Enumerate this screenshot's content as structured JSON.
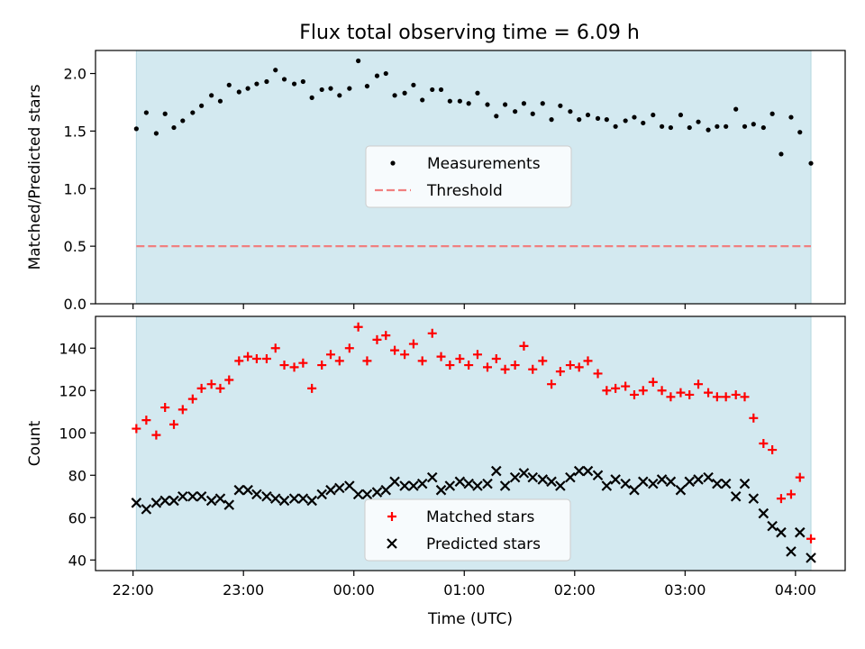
{
  "title": "Flux total observing time = 6.09 h",
  "colors": {
    "shade": "#d3e9f0",
    "shade_edge": "#b4d5df",
    "threshold": "#f08080",
    "matched": "#ff0000",
    "predicted": "#000000",
    "measurement": "#000000"
  },
  "chart_data": [
    {
      "type": "scatter",
      "panel": "top",
      "ylabel": "Matched/Predicted stars",
      "xlabel": "",
      "xlim_hours": [
        21.66,
        28.45
      ],
      "ylim": [
        0,
        2.2
      ],
      "yticks": [
        0.0,
        0.5,
        1.0,
        1.5,
        2.0
      ],
      "ytick_labels": [
        "0.0",
        "0.5",
        "1.0",
        "1.5",
        "2.0"
      ],
      "observing_window_hours": [
        22.03,
        28.14
      ],
      "legend": {
        "position": "center",
        "entries": [
          "Measurements",
          "Threshold"
        ]
      },
      "threshold": {
        "name": "Threshold",
        "value": 0.5,
        "style": "dashed"
      },
      "series": [
        {
          "name": "Measurements",
          "points": [
            [
              22.03,
              1.52
            ],
            [
              22.12,
              1.66
            ],
            [
              22.21,
              1.48
            ],
            [
              22.29,
              1.65
            ],
            [
              22.37,
              1.53
            ],
            [
              22.45,
              1.59
            ],
            [
              22.54,
              1.66
            ],
            [
              22.62,
              1.72
            ],
            [
              22.71,
              1.81
            ],
            [
              22.79,
              1.76
            ],
            [
              22.87,
              1.9
            ],
            [
              22.96,
              1.84
            ],
            [
              23.04,
              1.87
            ],
            [
              23.12,
              1.91
            ],
            [
              23.21,
              1.93
            ],
            [
              23.29,
              2.03
            ],
            [
              23.37,
              1.95
            ],
            [
              23.46,
              1.91
            ],
            [
              23.54,
              1.93
            ],
            [
              23.62,
              1.79
            ],
            [
              23.71,
              1.86
            ],
            [
              23.79,
              1.87
            ],
            [
              23.87,
              1.81
            ],
            [
              23.96,
              1.87
            ],
            [
              24.04,
              2.11
            ],
            [
              24.12,
              1.89
            ],
            [
              24.21,
              1.98
            ],
            [
              24.29,
              2.0
            ],
            [
              24.37,
              1.81
            ],
            [
              24.46,
              1.83
            ],
            [
              24.54,
              1.9
            ],
            [
              24.62,
              1.77
            ],
            [
              24.71,
              1.86
            ],
            [
              24.79,
              1.86
            ],
            [
              24.87,
              1.76
            ],
            [
              24.96,
              1.76
            ],
            [
              25.04,
              1.74
            ],
            [
              25.12,
              1.83
            ],
            [
              25.21,
              1.73
            ],
            [
              25.29,
              1.63
            ],
            [
              25.37,
              1.73
            ],
            [
              25.46,
              1.67
            ],
            [
              25.54,
              1.74
            ],
            [
              25.62,
              1.65
            ],
            [
              25.71,
              1.74
            ],
            [
              25.79,
              1.6
            ],
            [
              25.87,
              1.72
            ],
            [
              25.96,
              1.67
            ],
            [
              26.04,
              1.6
            ],
            [
              26.12,
              1.64
            ],
            [
              26.21,
              1.61
            ],
            [
              26.29,
              1.6
            ],
            [
              26.37,
              1.54
            ],
            [
              26.46,
              1.59
            ],
            [
              26.54,
              1.62
            ],
            [
              26.62,
              1.57
            ],
            [
              26.71,
              1.64
            ],
            [
              26.79,
              1.54
            ],
            [
              26.87,
              1.53
            ],
            [
              26.96,
              1.64
            ],
            [
              27.04,
              1.53
            ],
            [
              27.12,
              1.58
            ],
            [
              27.21,
              1.51
            ],
            [
              27.29,
              1.54
            ],
            [
              27.37,
              1.54
            ],
            [
              27.46,
              1.69
            ],
            [
              27.54,
              1.54
            ],
            [
              27.62,
              1.56
            ],
            [
              27.71,
              1.53
            ],
            [
              27.79,
              1.65
            ],
            [
              27.87,
              1.3
            ],
            [
              27.96,
              1.62
            ],
            [
              28.04,
              1.49
            ],
            [
              28.14,
              1.22
            ]
          ]
        }
      ]
    },
    {
      "type": "scatter",
      "panel": "bottom",
      "ylabel": "Count",
      "xlabel": "Time (UTC)",
      "xlim_hours": [
        21.66,
        28.45
      ],
      "ylim": [
        35,
        155
      ],
      "yticks": [
        40,
        60,
        80,
        100,
        120,
        140
      ],
      "ytick_labels": [
        "40",
        "60",
        "80",
        "100",
        "120",
        "140"
      ],
      "xticks_hours": [
        22,
        23,
        24,
        25,
        26,
        27,
        28
      ],
      "xtick_labels": [
        "22:00",
        "23:00",
        "00:00",
        "01:00",
        "02:00",
        "03:00",
        "04:00"
      ],
      "observing_window_hours": [
        22.03,
        28.14
      ],
      "legend": {
        "position": "lower center",
        "entries": [
          "Matched stars",
          "Predicted stars"
        ]
      },
      "series": [
        {
          "name": "Matched stars",
          "marker": "plus",
          "points": [
            [
              22.03,
              102
            ],
            [
              22.12,
              106
            ],
            [
              22.21,
              99
            ],
            [
              22.29,
              112
            ],
            [
              22.37,
              104
            ],
            [
              22.45,
              111
            ],
            [
              22.54,
              116
            ],
            [
              22.62,
              121
            ],
            [
              22.71,
              123
            ],
            [
              22.79,
              121
            ],
            [
              22.87,
              125
            ],
            [
              22.96,
              134
            ],
            [
              23.04,
              136
            ],
            [
              23.12,
              135
            ],
            [
              23.21,
              135
            ],
            [
              23.29,
              140
            ],
            [
              23.37,
              132
            ],
            [
              23.46,
              131
            ],
            [
              23.54,
              133
            ],
            [
              23.62,
              121
            ],
            [
              23.71,
              132
            ],
            [
              23.79,
              137
            ],
            [
              23.87,
              134
            ],
            [
              23.96,
              140
            ],
            [
              24.04,
              150
            ],
            [
              24.12,
              134
            ],
            [
              24.21,
              144
            ],
            [
              24.29,
              146
            ],
            [
              24.37,
              139
            ],
            [
              24.46,
              137
            ],
            [
              24.54,
              142
            ],
            [
              24.62,
              134
            ],
            [
              24.71,
              147
            ],
            [
              24.79,
              136
            ],
            [
              24.87,
              132
            ],
            [
              24.96,
              135
            ],
            [
              25.04,
              132
            ],
            [
              25.12,
              137
            ],
            [
              25.21,
              131
            ],
            [
              25.29,
              135
            ],
            [
              25.37,
              130
            ],
            [
              25.46,
              132
            ],
            [
              25.54,
              141
            ],
            [
              25.62,
              130
            ],
            [
              25.71,
              134
            ],
            [
              25.79,
              123
            ],
            [
              25.87,
              129
            ],
            [
              25.96,
              132
            ],
            [
              26.04,
              131
            ],
            [
              26.12,
              134
            ],
            [
              26.21,
              128
            ],
            [
              26.29,
              120
            ],
            [
              26.37,
              121
            ],
            [
              26.46,
              122
            ],
            [
              26.54,
              118
            ],
            [
              26.62,
              120
            ],
            [
              26.71,
              124
            ],
            [
              26.79,
              120
            ],
            [
              26.87,
              117
            ],
            [
              26.96,
              119
            ],
            [
              27.04,
              118
            ],
            [
              27.12,
              123
            ],
            [
              27.21,
              119
            ],
            [
              27.29,
              117
            ],
            [
              27.37,
              117
            ],
            [
              27.46,
              118
            ],
            [
              27.54,
              117
            ],
            [
              27.62,
              107
            ],
            [
              27.71,
              95
            ],
            [
              27.79,
              92
            ],
            [
              27.87,
              69
            ],
            [
              27.96,
              71
            ],
            [
              28.04,
              79
            ],
            [
              28.14,
              50
            ]
          ]
        },
        {
          "name": "Predicted stars",
          "marker": "x",
          "points": [
            [
              22.03,
              67
            ],
            [
              22.12,
              64
            ],
            [
              22.21,
              67
            ],
            [
              22.29,
              68
            ],
            [
              22.37,
              68
            ],
            [
              22.45,
              70
            ],
            [
              22.54,
              70
            ],
            [
              22.62,
              70
            ],
            [
              22.71,
              68
            ],
            [
              22.79,
              69
            ],
            [
              22.87,
              66
            ],
            [
              22.96,
              73
            ],
            [
              23.04,
              73
            ],
            [
              23.12,
              71
            ],
            [
              23.21,
              70
            ],
            [
              23.29,
              69
            ],
            [
              23.37,
              68
            ],
            [
              23.46,
              69
            ],
            [
              23.54,
              69
            ],
            [
              23.62,
              68
            ],
            [
              23.71,
              71
            ],
            [
              23.79,
              73
            ],
            [
              23.87,
              74
            ],
            [
              23.96,
              75
            ],
            [
              24.04,
              71
            ],
            [
              24.12,
              71
            ],
            [
              24.21,
              72
            ],
            [
              24.29,
              73
            ],
            [
              24.37,
              77
            ],
            [
              24.46,
              75
            ],
            [
              24.54,
              75
            ],
            [
              24.62,
              76
            ],
            [
              24.71,
              79
            ],
            [
              24.79,
              73
            ],
            [
              24.87,
              75
            ],
            [
              24.96,
              77
            ],
            [
              25.04,
              76
            ],
            [
              25.12,
              75
            ],
            [
              25.21,
              76
            ],
            [
              25.29,
              82
            ],
            [
              25.37,
              75
            ],
            [
              25.46,
              79
            ],
            [
              25.54,
              81
            ],
            [
              25.62,
              79
            ],
            [
              25.71,
              78
            ],
            [
              25.79,
              77
            ],
            [
              25.87,
              75
            ],
            [
              25.96,
              79
            ],
            [
              26.04,
              82
            ],
            [
              26.12,
              82
            ],
            [
              26.21,
              80
            ],
            [
              26.29,
              75
            ],
            [
              26.37,
              78
            ],
            [
              26.46,
              76
            ],
            [
              26.54,
              73
            ],
            [
              26.62,
              77
            ],
            [
              26.71,
              76
            ],
            [
              26.79,
              78
            ],
            [
              26.87,
              77
            ],
            [
              26.96,
              73
            ],
            [
              27.04,
              77
            ],
            [
              27.12,
              78
            ],
            [
              27.21,
              79
            ],
            [
              27.29,
              76
            ],
            [
              27.37,
              76
            ],
            [
              27.46,
              70
            ],
            [
              27.54,
              76
            ],
            [
              27.62,
              69
            ],
            [
              27.71,
              62
            ],
            [
              27.79,
              56
            ],
            [
              27.87,
              53
            ],
            [
              27.96,
              44
            ],
            [
              28.04,
              53
            ],
            [
              28.14,
              41
            ]
          ]
        }
      ]
    }
  ]
}
